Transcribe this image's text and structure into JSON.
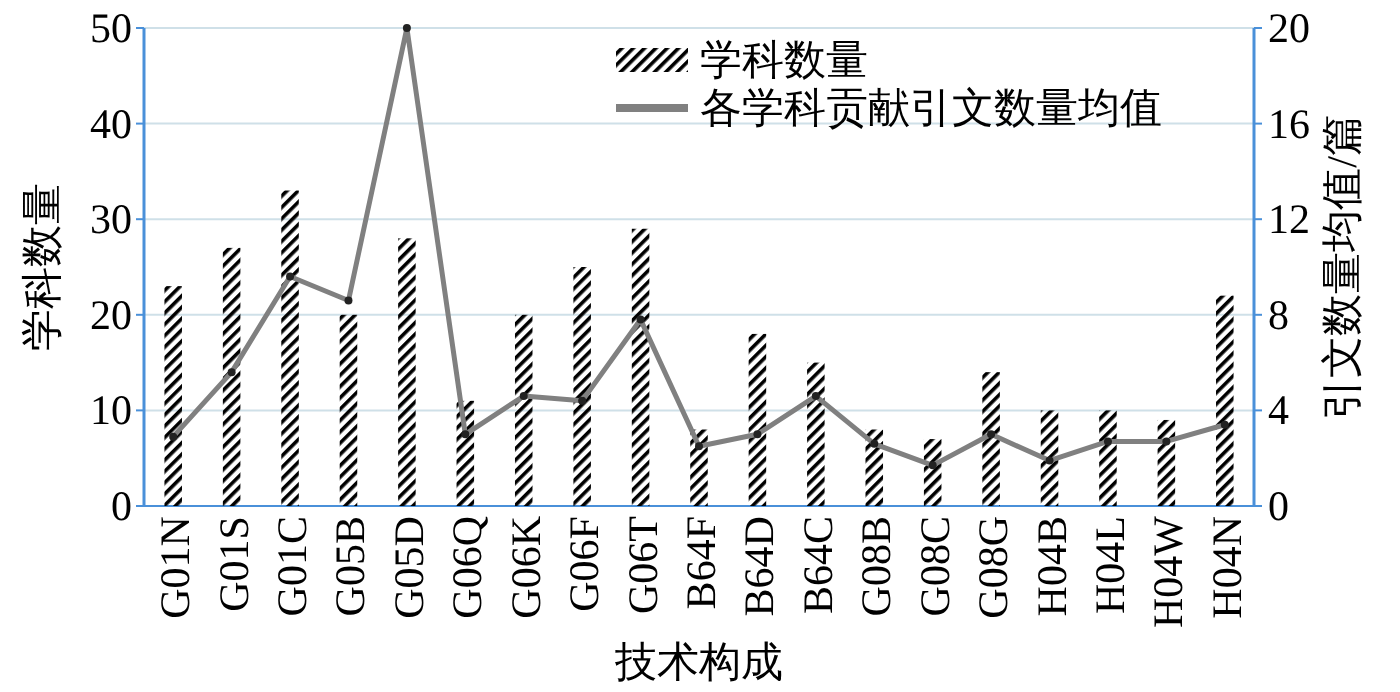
{
  "chart_data": {
    "type": "bar",
    "xlabel": "技术构成",
    "ylabel": "学科数量",
    "y2label": "引文数量均值/篇",
    "categories": [
      "G01N",
      "G01S",
      "G01C",
      "G05B",
      "G05D",
      "G06Q",
      "G06K",
      "G06F",
      "G06T",
      "B64F",
      "B64D",
      "B64C",
      "G08B",
      "G08C",
      "G08G",
      "H04B",
      "H04L",
      "H04W",
      "H04N"
    ],
    "series": [
      {
        "name": "学科数量",
        "color": "#000000",
        "values": [
          23,
          27,
          33,
          20,
          28,
          11,
          20,
          25,
          29,
          8,
          18,
          15,
          8,
          7,
          14,
          10,
          10,
          9,
          22
        ]
      },
      {
        "name": "各学科贡献引文数量均值",
        "type": "line",
        "axis": "y2",
        "color": "#808080",
        "values": [
          2.9,
          5.6,
          9.6,
          8.6,
          20,
          3,
          4.6,
          4.4,
          7.8,
          2.5,
          3,
          4.6,
          2.6,
          1.7,
          3,
          1.9,
          2.7,
          2.7,
          3.4
        ]
      }
    ],
    "ylim": [
      0,
      50
    ],
    "yticks": [
      0,
      10,
      20,
      30,
      40,
      50
    ],
    "y2lim": [
      0,
      20
    ],
    "y2ticks": [
      0,
      4,
      8,
      12,
      16,
      20
    ],
    "grid": "y",
    "legend": "top right",
    "marker": "circle",
    "line_style": "solid"
  }
}
